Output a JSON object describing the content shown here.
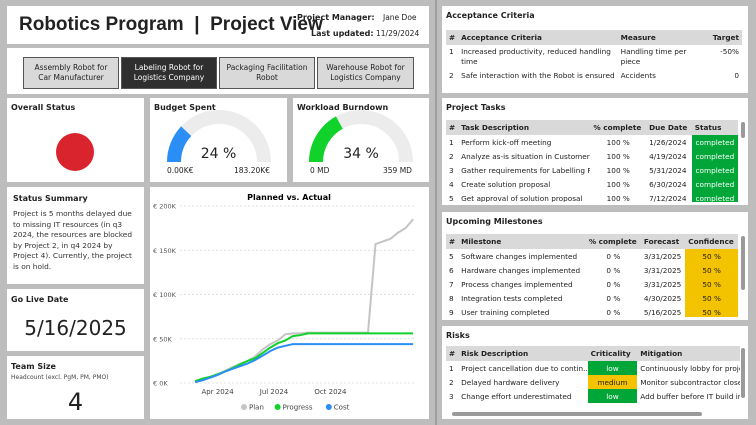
{
  "header": {
    "title": "Robotics Program  |  Project View",
    "manager_label": "Project Manager:",
    "manager_value": "Jane Doe",
    "updated_label": "Last updated:",
    "updated_value": "11/29/2024"
  },
  "project_buttons": [
    {
      "label": "Assembly Robot for Car Manufacturer",
      "active": false
    },
    {
      "label": "Labeling Robot for Logistics Company",
      "active": true
    },
    {
      "label": "Packaging Facilitation Robot",
      "active": false
    },
    {
      "label": "Warehouse Robot for Logistics Company",
      "active": false
    }
  ],
  "overall_status": {
    "title": "Overall Status",
    "color": "#d9242e"
  },
  "budget": {
    "title": "Budget Spent",
    "value": "24 %",
    "percent": 24,
    "min": "0.00K€",
    "max": "183.20K€",
    "color": "#2b8ef5"
  },
  "workload": {
    "title": "Workload Burndown",
    "value": "34 %",
    "percent": 34,
    "min": "0 MD",
    "max": "359 MD",
    "color": "#10d22a"
  },
  "status_summary": {
    "title": "Status Summary",
    "text": "Project is 5 months delayed due to missing IT resources (in q3 2024, the resources are blocked by Project 2, in q4 2024 by Project 4). Currently, the project is on hold."
  },
  "go_live": {
    "title": "Go Live Date",
    "value": "5/16/2025"
  },
  "team_size": {
    "title": "Team Size",
    "subtitle": "Headcount (excl. PgM, PM, PMO)",
    "value": "4"
  },
  "chart_data": {
    "type": "line",
    "title": "Planned vs. Actual",
    "y_ticks": [
      "€ 200K",
      "€ 150K",
      "€ 100K",
      "€ 50K",
      "€ 0K"
    ],
    "ylim": [
      0,
      200
    ],
    "x_ticks": [
      "Apr 2024",
      "Jul 2024",
      "Oct 2024"
    ],
    "x_tick_pos": [
      2,
      5,
      8
    ],
    "xlim": [
      0,
      12.5
    ],
    "series": [
      {
        "name": "Plan",
        "color": "#c4c4c4",
        "x": [
          0.8,
          1.2,
          1.6,
          2,
          2.4,
          2.8,
          3.2,
          3.6,
          4,
          4.4,
          4.8,
          5.2,
          5.6,
          6,
          6.4,
          6.8,
          7.2,
          7.6,
          8,
          8.4,
          8.8,
          9.2,
          9.6,
          10,
          10.4,
          10.8,
          11.2,
          11.6,
          12,
          12.4
        ],
        "y": [
          2,
          4,
          6,
          9,
          14,
          18,
          22,
          25,
          30,
          38,
          44,
          48,
          55,
          56,
          56,
          57,
          57,
          57,
          57,
          57,
          57,
          57,
          57,
          57,
          157,
          160,
          163,
          170,
          175,
          185
        ]
      },
      {
        "name": "Progress",
        "color": "#10d22a",
        "x": [
          0.8,
          1.2,
          1.6,
          2,
          2.4,
          2.8,
          3.2,
          3.6,
          4,
          4.4,
          4.8,
          5.2,
          5.6,
          6,
          6.4,
          6.8,
          7.2,
          7.6,
          8,
          8.4,
          8.8,
          9.2,
          9.6,
          10,
          10.4,
          10.8,
          11.2,
          11.6,
          12,
          12.4
        ],
        "y": [
          2,
          5,
          7,
          10,
          13,
          17,
          21,
          25,
          28,
          34,
          40,
          45,
          48,
          53,
          54,
          56,
          56,
          56,
          56,
          56,
          56,
          56,
          56,
          56,
          56,
          56,
          56,
          56,
          56,
          56
        ]
      },
      {
        "name": "Cost",
        "color": "#2b8ef5",
        "x": [
          0.8,
          1.2,
          1.6,
          2,
          2.4,
          2.8,
          3.2,
          3.6,
          4,
          4.4,
          4.8,
          5.2,
          5.6,
          6,
          6.4,
          6.8,
          7.2,
          7.6,
          8,
          8.4,
          8.8,
          9.2,
          9.6,
          10,
          10.4,
          10.8,
          11.2,
          11.6,
          12,
          12.4
        ],
        "y": [
          1,
          3,
          6,
          9,
          13,
          16,
          19,
          22,
          26,
          31,
          36,
          40,
          42,
          44,
          44,
          44,
          44,
          44,
          44,
          44,
          44,
          44,
          44,
          44,
          44,
          44,
          44,
          44,
          44,
          44
        ]
      }
    ]
  },
  "acceptance": {
    "title": "Acceptance Criteria",
    "headers": [
      "#",
      "Acceptance Criteria",
      "Measure",
      "Target"
    ],
    "rows": [
      [
        "1",
        "Increased productivity, reduced handling time",
        "Handling time per piece",
        "-50%"
      ],
      [
        "2",
        "Safe interaction with the Robot is ensured",
        "Accidents",
        "0"
      ]
    ]
  },
  "tasks": {
    "title": "Project Tasks",
    "headers": [
      "#",
      "Task Description",
      "% complete",
      "Due Date",
      "Status"
    ],
    "rows": [
      [
        "1",
        "Perform kick-off meeting",
        "100 %",
        "1/26/2024",
        "completed"
      ],
      [
        "2",
        "Analyze as-is situation in Customer ...",
        "100 %",
        "4/19/2024",
        "completed"
      ],
      [
        "3",
        "Gather requirements for Labelling Ro...",
        "100 %",
        "5/31/2024",
        "completed"
      ],
      [
        "4",
        "Create solution proposal",
        "100 %",
        "6/30/2024",
        "completed"
      ],
      [
        "5",
        "Get approval of solution proposal",
        "100 %",
        "7/12/2024",
        "completed"
      ]
    ]
  },
  "milestones": {
    "title": "Upcoming Milestones",
    "headers": [
      "#",
      "Milestone",
      "% complete",
      "Forecast",
      "Confidence"
    ],
    "rows": [
      [
        "5",
        "Software changes implemented",
        "0 %",
        "3/31/2025",
        "50 %"
      ],
      [
        "6",
        "Hardware changes implemented",
        "0 %",
        "3/31/2025",
        "50 %"
      ],
      [
        "7",
        "Process changes implemented",
        "0 %",
        "3/31/2025",
        "50 %"
      ],
      [
        "8",
        "Integration tests completed",
        "0 %",
        "4/30/2025",
        "50 %"
      ],
      [
        "9",
        "User training completed",
        "0 %",
        "5/16/2025",
        "50 %"
      ]
    ]
  },
  "risks": {
    "title": "Risks",
    "headers": [
      "#",
      "Risk Description",
      "Criticality",
      "Mitigation"
    ],
    "rows": [
      [
        "1",
        "Project cancellation due to contin...",
        "low",
        "Continuously lobby for proje"
      ],
      [
        "2",
        "Delayed hardware delivery",
        "medium",
        "Monitor subcontractor closel"
      ],
      [
        "3",
        "Change effort underestimated",
        "low",
        "Add buffer before IT build in"
      ]
    ]
  }
}
